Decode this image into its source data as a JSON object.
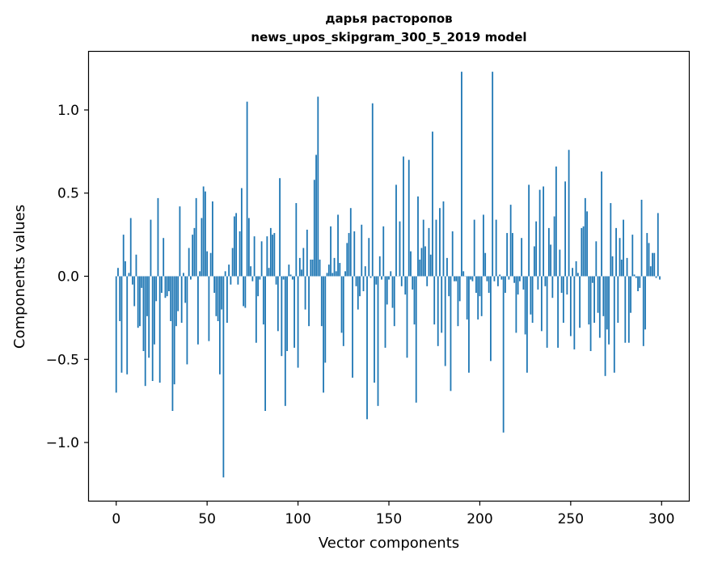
{
  "chart_data": {
    "type": "bar",
    "title_lines": [
      "дарья растoропов",
      "news_upos_skipgram_300_5_2019 model"
    ],
    "xlabel": "Vector components",
    "ylabel": "Components values",
    "xlim": [
      -15,
      315
    ],
    "ylim": [
      -1.35,
      1.35
    ],
    "xticks": [
      0,
      50,
      100,
      150,
      200,
      250,
      300
    ],
    "yticks": [
      -1.0,
      -0.5,
      0.0,
      0.5,
      1.0
    ],
    "ytick_labels": [
      "−1.0",
      "−0.5",
      "0.0",
      "0.5",
      "1.0"
    ],
    "grid": false,
    "bar_color": "#1f77b4",
    "x_start": 0,
    "values": [
      -0.7,
      0.05,
      -0.27,
      -0.58,
      0.25,
      0.09,
      -0.59,
      0.02,
      0.35,
      -0.05,
      -0.18,
      0.13,
      -0.31,
      -0.3,
      -0.07,
      -0.45,
      -0.66,
      -0.24,
      -0.49,
      0.34,
      -0.63,
      -0.41,
      -0.15,
      0.47,
      -0.64,
      -0.1,
      0.23,
      -0.13,
      -0.12,
      -0.09,
      -0.27,
      -0.81,
      -0.65,
      -0.3,
      -0.21,
      0.42,
      -0.28,
      0.02,
      -0.16,
      -0.53,
      0.17,
      -0.02,
      0.25,
      0.29,
      0.47,
      -0.41,
      0.03,
      0.35,
      0.54,
      0.51,
      0.15,
      -0.39,
      0.14,
      0.45,
      -0.1,
      -0.24,
      -0.27,
      -0.59,
      -0.2,
      -1.21,
      0.03,
      -0.28,
      0.07,
      -0.05,
      0.17,
      0.36,
      0.38,
      -0.05,
      0.27,
      0.53,
      -0.18,
      -0.19,
      1.05,
      0.35,
      0.06,
      -0.03,
      0.24,
      -0.4,
      -0.12,
      -0.02,
      0.21,
      -0.29,
      -0.81,
      0.24,
      0.05,
      0.29,
      0.25,
      0.26,
      -0.05,
      -0.33,
      0.59,
      -0.48,
      -0.02,
      -0.78,
      -0.45,
      0.07,
      0.01,
      -0.02,
      -0.43,
      0.44,
      -0.55,
      0.11,
      0.04,
      0.17,
      -0.2,
      0.28,
      -0.3,
      0.1,
      0.1,
      0.58,
      0.73,
      1.08,
      0.1,
      -0.3,
      -0.7,
      -0.52,
      0.02,
      0.07,
      0.3,
      0.02,
      0.11,
      0.03,
      0.37,
      0.08,
      -0.34,
      -0.42,
      0.03,
      0.2,
      0.26,
      0.41,
      -0.61,
      0.27,
      -0.06,
      -0.2,
      -0.12,
      0.31,
      -0.09,
      0.06,
      -0.86,
      0.23,
      -0.01,
      1.04,
      -0.64,
      -0.05,
      -0.78,
      0.12,
      -0.02,
      0.3,
      -0.43,
      -0.17,
      -0.02,
      0.03,
      -0.19,
      -0.3,
      0.55,
      0.0,
      0.33,
      -0.06,
      0.72,
      -0.11,
      -0.49,
      0.7,
      0.15,
      -0.08,
      -0.29,
      -0.76,
      0.48,
      0.1,
      0.17,
      0.34,
      0.18,
      -0.06,
      0.29,
      0.13,
      0.87,
      -0.29,
      0.34,
      -0.42,
      0.41,
      -0.34,
      0.45,
      -0.54,
      0.11,
      -0.12,
      -0.69,
      0.27,
      -0.03,
      -0.03,
      -0.3,
      -0.15,
      1.23,
      0.03,
      0.0,
      -0.26,
      -0.58,
      -0.02,
      -0.03,
      0.34,
      -0.1,
      -0.26,
      -0.12,
      -0.24,
      0.37,
      0.14,
      -0.03,
      -0.1,
      -0.51,
      1.23,
      -0.03,
      0.34,
      -0.06,
      0.01,
      -0.02,
      -0.94,
      -0.1,
      0.26,
      -0.02,
      0.43,
      0.26,
      -0.04,
      -0.34,
      -0.11,
      -0.03,
      0.23,
      -0.08,
      -0.35,
      -0.58,
      0.55,
      -0.23,
      -0.28,
      0.18,
      0.33,
      -0.08,
      0.52,
      -0.33,
      0.54,
      -0.06,
      -0.43,
      0.29,
      0.19,
      -0.13,
      0.36,
      0.66,
      -0.43,
      0.16,
      -0.1,
      -0.28,
      0.57,
      -0.11,
      0.76,
      -0.36,
      0.05,
      -0.44,
      0.09,
      0.02,
      -0.31,
      0.29,
      0.3,
      0.47,
      0.39,
      -0.29,
      -0.45,
      -0.04,
      -0.28,
      0.21,
      -0.22,
      -0.37,
      0.63,
      -0.24,
      -0.6,
      -0.32,
      -0.41,
      0.44,
      0.12,
      -0.58,
      0.29,
      -0.28,
      0.23,
      0.1,
      0.34,
      -0.4,
      0.11,
      -0.4,
      -0.22,
      0.25,
      0.01,
      -0.01,
      -0.09,
      -0.07,
      0.46,
      -0.42,
      -0.32,
      0.26,
      0.2,
      0.06,
      0.14,
      0.14,
      -0.01,
      0.38,
      -0.02
    ]
  }
}
